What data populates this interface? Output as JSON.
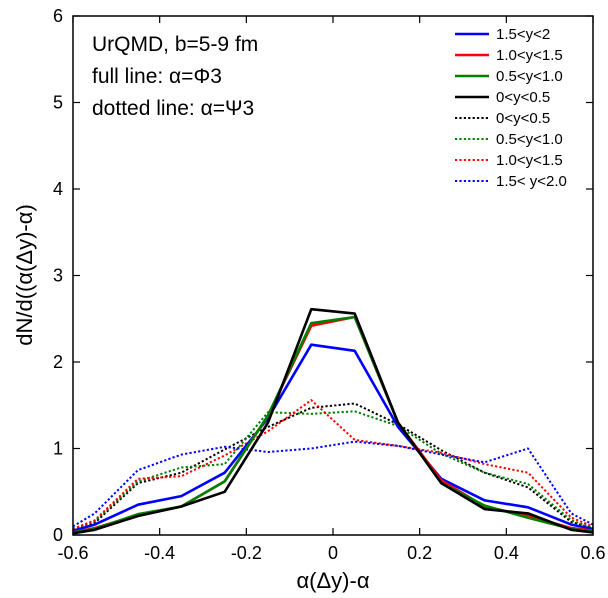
{
  "chart_data": {
    "type": "line",
    "xlabel": "α(Δy)-α",
    "ylabel": "dN/d((α(Δy)-α)",
    "xlim": [
      -0.6,
      0.6
    ],
    "ylim": [
      0,
      6
    ],
    "x_ticks": [
      -0.6,
      -0.4,
      -0.2,
      0,
      0.2,
      0.4,
      0.6
    ],
    "x_tick_labels": [
      "-0.6",
      "-0.4",
      "-0.2",
      "0",
      "0.2",
      "0.4",
      "0.6"
    ],
    "y_ticks": [
      0,
      1,
      2,
      3,
      4,
      5,
      6
    ],
    "y_tick_labels": [
      "0",
      "1",
      "2",
      "3",
      "4",
      "5",
      "6"
    ],
    "grid": false,
    "legend_position": "top-right",
    "annotations": [
      "UrQMD, b=5-9 fm",
      "full line: α=Φ3",
      "dotted line: α=Ψ3"
    ],
    "x": [
      -0.6,
      -0.55,
      -0.45,
      -0.35,
      -0.25,
      -0.15,
      -0.05,
      0.05,
      0.15,
      0.25,
      0.35,
      0.45,
      0.55,
      0.6
    ],
    "series": [
      {
        "name": "1.5<y<2",
        "color": "#0000ff",
        "dash": "solid",
        "values": [
          0.05,
          0.12,
          0.35,
          0.45,
          0.72,
          1.35,
          2.2,
          2.13,
          1.25,
          0.65,
          0.4,
          0.32,
          0.12,
          0.07
        ]
      },
      {
        "name": "1.0<y<1.5",
        "color": "#ff0000",
        "dash": "solid",
        "values": [
          0.03,
          0.08,
          0.23,
          0.33,
          0.62,
          1.38,
          2.42,
          2.52,
          1.3,
          0.63,
          0.33,
          0.22,
          0.08,
          0.05
        ]
      },
      {
        "name": "0.5<y<1.0",
        "color": "#008000",
        "dash": "solid",
        "values": [
          0.03,
          0.07,
          0.24,
          0.33,
          0.62,
          1.38,
          2.45,
          2.52,
          1.3,
          0.6,
          0.34,
          0.2,
          0.07,
          0.04
        ]
      },
      {
        "name": "0<y<0.5",
        "color": "#000000",
        "dash": "solid",
        "values": [
          0.02,
          0.06,
          0.22,
          0.33,
          0.5,
          1.3,
          2.61,
          2.56,
          1.3,
          0.6,
          0.3,
          0.25,
          0.06,
          0.03
        ]
      },
      {
        "name": "0<y<0.5",
        "color": "#000000",
        "dash": "dotted",
        "values": [
          0.05,
          0.14,
          0.6,
          0.72,
          0.99,
          1.25,
          1.47,
          1.52,
          1.28,
          0.98,
          0.72,
          0.55,
          0.15,
          0.08
        ]
      },
      {
        "name": "0.5<y<1.0",
        "color": "#008000",
        "dash": "dotted",
        "values": [
          0.06,
          0.16,
          0.62,
          0.78,
          0.82,
          1.42,
          1.4,
          1.43,
          1.26,
          0.94,
          0.72,
          0.59,
          0.17,
          0.08
        ]
      },
      {
        "name": "1.0<y<1.5",
        "color": "#ff0000",
        "dash": "dotted",
        "values": [
          0.07,
          0.17,
          0.65,
          0.68,
          0.92,
          1.2,
          1.56,
          1.1,
          1.03,
          0.95,
          0.82,
          0.72,
          0.2,
          0.1
        ]
      },
      {
        "name": "1.5< y<2.0",
        "color": "#0000ff",
        "dash": "dotted",
        "values": [
          0.1,
          0.25,
          0.75,
          0.93,
          1.02,
          0.96,
          1.0,
          1.08,
          1.03,
          0.93,
          0.84,
          1.0,
          0.25,
          0.12
        ]
      }
    ]
  }
}
